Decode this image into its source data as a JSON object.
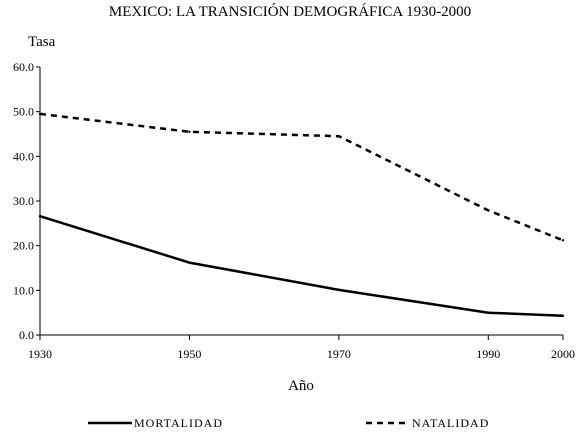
{
  "chart_data": {
    "type": "line",
    "title": "MEXICO: LA TRANSICIÓN DEMOGRÁFICA 1930-2000",
    "xlabel": "Año",
    "ylabel": "Tasa",
    "x": [
      1930,
      1950,
      1970,
      1990,
      2000
    ],
    "x_ticks": [
      "1930",
      "1950",
      "1970",
      "1990",
      "2000"
    ],
    "y_ticks": [
      "0.0",
      "10.0",
      "20.0",
      "30.0",
      "40.0",
      "50.0",
      "60.0"
    ],
    "ylim": [
      0,
      60
    ],
    "grid": false,
    "legend_position": "bottom",
    "series": [
      {
        "name": "MORTALIDAD",
        "style": "solid",
        "values": [
          26.6,
          16.2,
          10.1,
          5.0,
          4.3
        ]
      },
      {
        "name": "NATALIDAD",
        "style": "dashed",
        "values": [
          49.5,
          45.5,
          44.5,
          27.9,
          21.2
        ]
      }
    ],
    "colors": {
      "line": "#000000",
      "background": "#ffffff"
    }
  }
}
